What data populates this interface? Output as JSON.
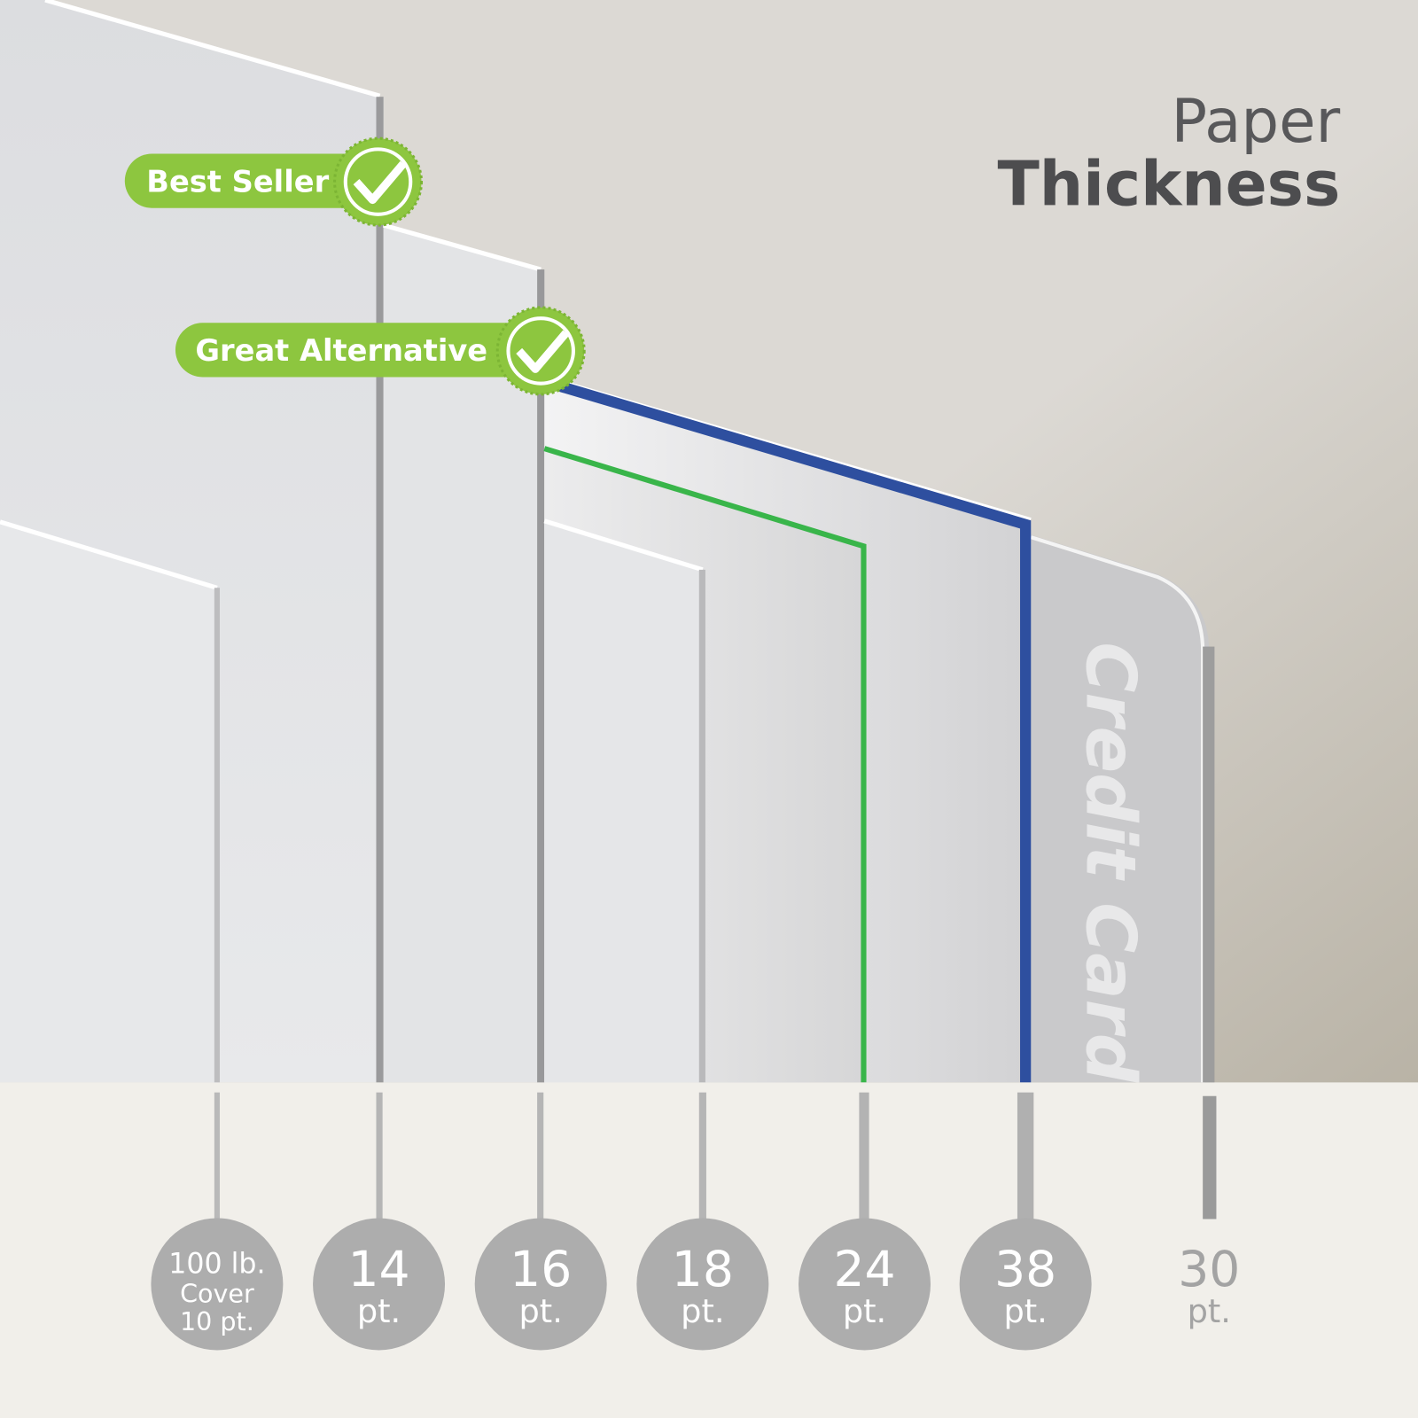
{
  "title": {
    "line1": "Paper",
    "line2": "Thickness"
  },
  "badges": [
    {
      "label": "Best Seller",
      "icon": "check-seal-icon",
      "applies_to": "14 pt."
    },
    {
      "label": "Great Alternative",
      "icon": "check-seal-icon",
      "applies_to": "16 pt."
    }
  ],
  "card_label": "Credit Card",
  "thickness_options": [
    {
      "lines": [
        "100 lb.",
        "Cover",
        "10 pt."
      ],
      "circle": true
    },
    {
      "lines": [
        "14",
        "pt."
      ],
      "circle": true
    },
    {
      "lines": [
        "16",
        "pt."
      ],
      "circle": true
    },
    {
      "lines": [
        "18",
        "pt."
      ],
      "circle": true
    },
    {
      "lines": [
        "24",
        "pt."
      ],
      "circle": true
    },
    {
      "lines": [
        "38",
        "pt."
      ],
      "circle": true
    },
    {
      "lines": [
        "30",
        "pt."
      ],
      "circle": false
    }
  ],
  "colors": {
    "badge_green": "#8dc63f",
    "edge_24pt": "#39b54a",
    "edge_38pt": "#2e4f9f",
    "circle_gray": "#adadad",
    "title_dark": "#4d4d4f",
    "background_top": "#dcd9d4",
    "background_bottom": "#f1efea"
  }
}
